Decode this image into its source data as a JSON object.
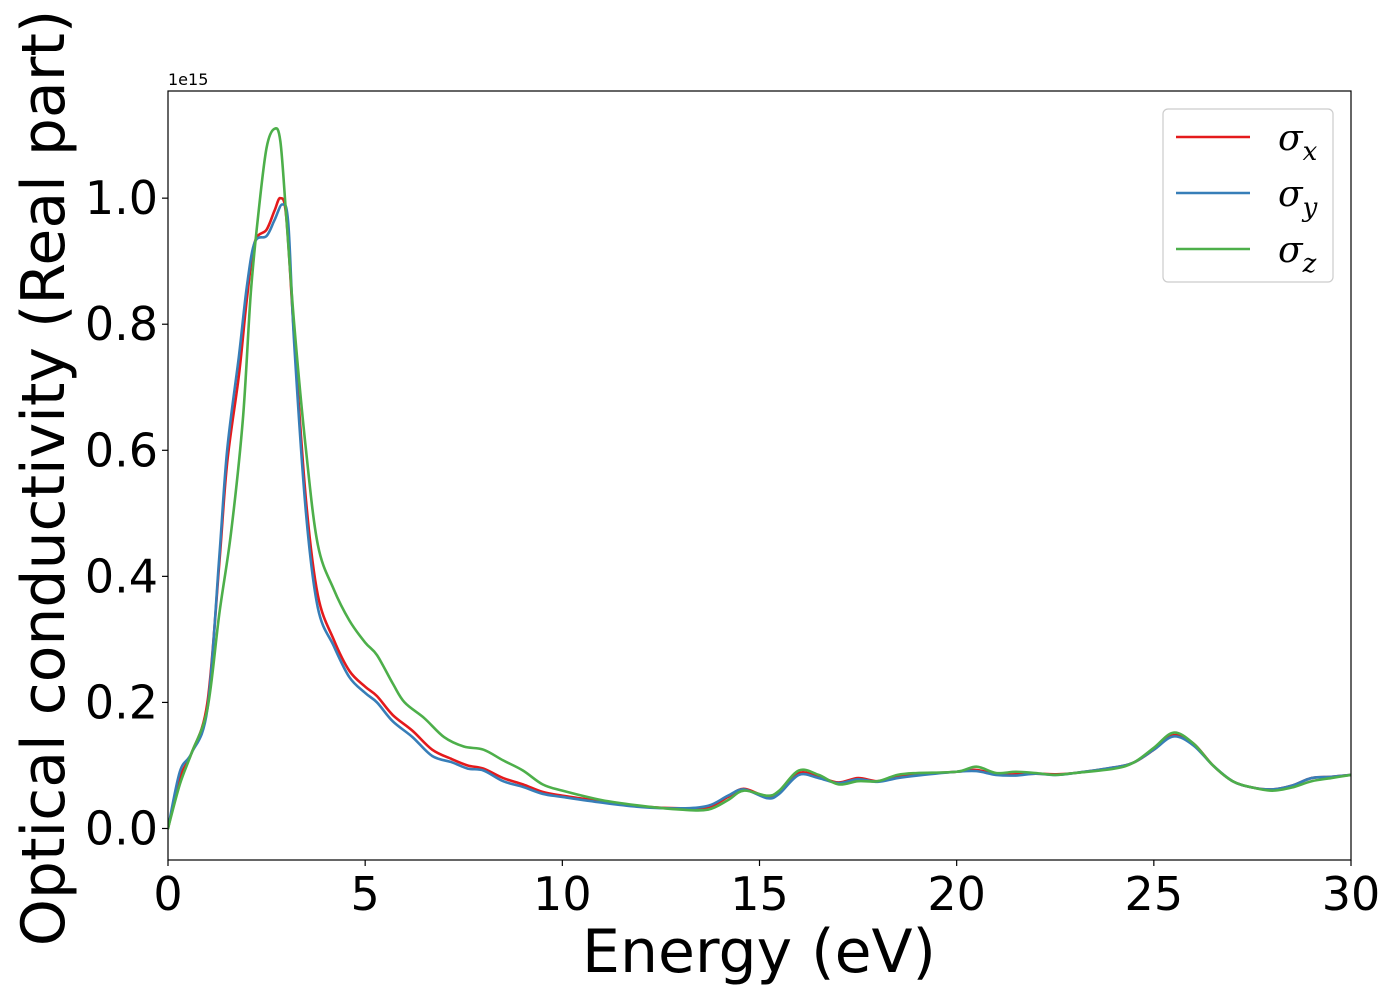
{
  "chart_data": {
    "type": "line",
    "title": "",
    "xlabel": "Energy (eV)",
    "ylabel": "Optical conductivity (Real part)",
    "y_offset_label": "1e15",
    "y_scale": 1000000000000000.0,
    "xlim": [
      0,
      30
    ],
    "ylim": [
      -0.05,
      1.17
    ],
    "x_ticks": [
      0,
      5,
      10,
      15,
      20,
      25,
      30
    ],
    "x_tick_labels": [
      "0",
      "5",
      "10",
      "15",
      "20",
      "25",
      "30"
    ],
    "y_ticks": [
      0.0,
      0.2,
      0.4,
      0.6,
      0.8,
      1.0
    ],
    "y_tick_labels": [
      "0.0",
      "0.2",
      "0.4",
      "0.6",
      "0.8",
      "1.0"
    ],
    "grid": false,
    "legend_position": "top-right",
    "series": [
      {
        "name": "σx",
        "base": "σ",
        "sub": "x",
        "color": "#e41a1c",
        "points": [
          [
            0,
            0
          ],
          [
            0.3,
            0.08
          ],
          [
            0.6,
            0.12
          ],
          [
            1.0,
            0.2
          ],
          [
            1.3,
            0.42
          ],
          [
            1.5,
            0.58
          ],
          [
            1.8,
            0.72
          ],
          [
            2.0,
            0.84
          ],
          [
            2.2,
            0.93
          ],
          [
            2.5,
            0.95
          ],
          [
            2.7,
            0.98
          ],
          [
            2.85,
            1.0
          ],
          [
            3.0,
            0.97
          ],
          [
            3.2,
            0.78
          ],
          [
            3.5,
            0.52
          ],
          [
            3.8,
            0.37
          ],
          [
            4.2,
            0.3
          ],
          [
            4.6,
            0.25
          ],
          [
            5.0,
            0.225
          ],
          [
            5.3,
            0.21
          ],
          [
            5.7,
            0.18
          ],
          [
            6.2,
            0.155
          ],
          [
            6.7,
            0.125
          ],
          [
            7.2,
            0.11
          ],
          [
            7.6,
            0.1
          ],
          [
            8.0,
            0.095
          ],
          [
            8.5,
            0.08
          ],
          [
            9.0,
            0.07
          ],
          [
            9.5,
            0.058
          ],
          [
            10,
            0.052
          ],
          [
            11,
            0.043
          ],
          [
            12,
            0.035
          ],
          [
            13,
            0.032
          ],
          [
            13.7,
            0.034
          ],
          [
            14.2,
            0.05
          ],
          [
            14.6,
            0.063
          ],
          [
            15.2,
            0.05
          ],
          [
            15.5,
            0.058
          ],
          [
            16.0,
            0.088
          ],
          [
            16.5,
            0.082
          ],
          [
            17.0,
            0.073
          ],
          [
            17.5,
            0.08
          ],
          [
            18.0,
            0.075
          ],
          [
            18.5,
            0.082
          ],
          [
            19,
            0.086
          ],
          [
            20,
            0.09
          ],
          [
            20.5,
            0.093
          ],
          [
            21,
            0.086
          ],
          [
            21.5,
            0.086
          ],
          [
            22,
            0.087
          ],
          [
            22.5,
            0.086
          ],
          [
            23,
            0.088
          ],
          [
            24,
            0.097
          ],
          [
            24.5,
            0.105
          ],
          [
            25,
            0.125
          ],
          [
            25.5,
            0.148
          ],
          [
            26,
            0.135
          ],
          [
            26.5,
            0.1
          ],
          [
            27,
            0.075
          ],
          [
            27.5,
            0.065
          ],
          [
            28,
            0.062
          ],
          [
            28.5,
            0.068
          ],
          [
            29,
            0.08
          ],
          [
            29.5,
            0.082
          ],
          [
            30,
            0.085
          ]
        ]
      },
      {
        "name": "σy",
        "base": "σ",
        "sub": "y",
        "color": "#377eb8",
        "points": [
          [
            0,
            0
          ],
          [
            0.3,
            0.09
          ],
          [
            0.6,
            0.12
          ],
          [
            1.0,
            0.19
          ],
          [
            1.3,
            0.43
          ],
          [
            1.5,
            0.6
          ],
          [
            1.8,
            0.75
          ],
          [
            2.0,
            0.86
          ],
          [
            2.2,
            0.93
          ],
          [
            2.5,
            0.94
          ],
          [
            2.7,
            0.965
          ],
          [
            2.9,
            0.99
          ],
          [
            3.05,
            0.96
          ],
          [
            3.2,
            0.77
          ],
          [
            3.5,
            0.5
          ],
          [
            3.8,
            0.35
          ],
          [
            4.2,
            0.29
          ],
          [
            4.6,
            0.24
          ],
          [
            5.0,
            0.215
          ],
          [
            5.3,
            0.2
          ],
          [
            5.7,
            0.17
          ],
          [
            6.2,
            0.145
          ],
          [
            6.7,
            0.115
          ],
          [
            7.2,
            0.105
          ],
          [
            7.6,
            0.095
          ],
          [
            8.0,
            0.092
          ],
          [
            8.5,
            0.075
          ],
          [
            9.0,
            0.066
          ],
          [
            9.5,
            0.055
          ],
          [
            10,
            0.05
          ],
          [
            11,
            0.041
          ],
          [
            12,
            0.034
          ],
          [
            13,
            0.032
          ],
          [
            13.7,
            0.036
          ],
          [
            14.2,
            0.052
          ],
          [
            14.6,
            0.062
          ],
          [
            15.2,
            0.048
          ],
          [
            15.5,
            0.055
          ],
          [
            16.0,
            0.085
          ],
          [
            16.5,
            0.08
          ],
          [
            17.0,
            0.072
          ],
          [
            17.5,
            0.078
          ],
          [
            18.0,
            0.074
          ],
          [
            18.5,
            0.08
          ],
          [
            19,
            0.084
          ],
          [
            20,
            0.09
          ],
          [
            20.5,
            0.091
          ],
          [
            21,
            0.085
          ],
          [
            21.5,
            0.084
          ],
          [
            22,
            0.087
          ],
          [
            22.5,
            0.085
          ],
          [
            23,
            0.088
          ],
          [
            24,
            0.097
          ],
          [
            24.5,
            0.105
          ],
          [
            25,
            0.125
          ],
          [
            25.5,
            0.146
          ],
          [
            26,
            0.132
          ],
          [
            26.5,
            0.1
          ],
          [
            27,
            0.075
          ],
          [
            27.5,
            0.065
          ],
          [
            28,
            0.062
          ],
          [
            28.5,
            0.068
          ],
          [
            29,
            0.08
          ],
          [
            29.5,
            0.082
          ],
          [
            30,
            0.085
          ]
        ]
      },
      {
        "name": "σz",
        "base": "σ",
        "sub": "z",
        "color": "#4daf4a",
        "points": [
          [
            0,
            0
          ],
          [
            0.3,
            0.07
          ],
          [
            0.6,
            0.12
          ],
          [
            1.0,
            0.19
          ],
          [
            1.3,
            0.34
          ],
          [
            1.6,
            0.47
          ],
          [
            1.9,
            0.65
          ],
          [
            2.1,
            0.85
          ],
          [
            2.3,
            0.98
          ],
          [
            2.5,
            1.08
          ],
          [
            2.7,
            1.11
          ],
          [
            2.85,
            1.09
          ],
          [
            3.0,
            0.97
          ],
          [
            3.2,
            0.8
          ],
          [
            3.5,
            0.6
          ],
          [
            3.8,
            0.45
          ],
          [
            4.2,
            0.38
          ],
          [
            4.6,
            0.33
          ],
          [
            5.0,
            0.295
          ],
          [
            5.3,
            0.275
          ],
          [
            5.7,
            0.23
          ],
          [
            6.0,
            0.2
          ],
          [
            6.5,
            0.175
          ],
          [
            7.0,
            0.145
          ],
          [
            7.5,
            0.13
          ],
          [
            8.0,
            0.125
          ],
          [
            8.5,
            0.108
          ],
          [
            9.0,
            0.092
          ],
          [
            9.5,
            0.07
          ],
          [
            10,
            0.06
          ],
          [
            11,
            0.045
          ],
          [
            12,
            0.036
          ],
          [
            13,
            0.03
          ],
          [
            13.7,
            0.03
          ],
          [
            14.2,
            0.045
          ],
          [
            14.6,
            0.06
          ],
          [
            15.2,
            0.052
          ],
          [
            15.5,
            0.06
          ],
          [
            16.0,
            0.092
          ],
          [
            16.5,
            0.085
          ],
          [
            17.0,
            0.07
          ],
          [
            17.5,
            0.075
          ],
          [
            18.0,
            0.075
          ],
          [
            18.5,
            0.085
          ],
          [
            19,
            0.088
          ],
          [
            20,
            0.09
          ],
          [
            20.5,
            0.098
          ],
          [
            21,
            0.088
          ],
          [
            21.5,
            0.09
          ],
          [
            22,
            0.088
          ],
          [
            22.5,
            0.085
          ],
          [
            23,
            0.088
          ],
          [
            24,
            0.095
          ],
          [
            24.5,
            0.105
          ],
          [
            25,
            0.128
          ],
          [
            25.5,
            0.152
          ],
          [
            26,
            0.135
          ],
          [
            26.5,
            0.1
          ],
          [
            27,
            0.075
          ],
          [
            27.5,
            0.065
          ],
          [
            28,
            0.06
          ],
          [
            28.5,
            0.065
          ],
          [
            29,
            0.075
          ],
          [
            29.5,
            0.08
          ],
          [
            30,
            0.085
          ]
        ]
      }
    ]
  }
}
